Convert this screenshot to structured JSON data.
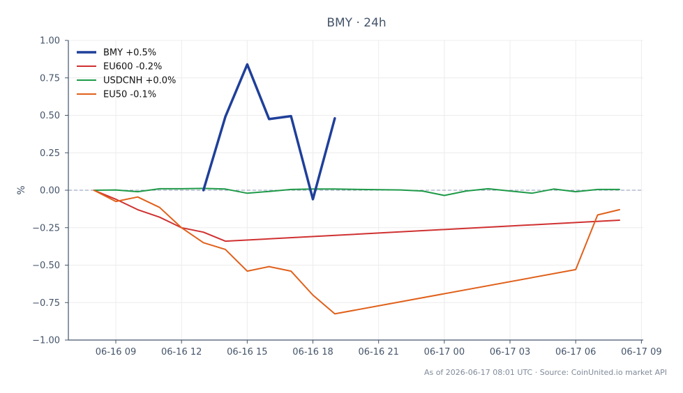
{
  "chart_data": {
    "type": "line",
    "title": "BMY · 24h",
    "xlabel": "",
    "ylabel": "%",
    "ylim": [
      -1.0,
      1.0
    ],
    "yticks": [
      -1.0,
      -0.75,
      -0.5,
      -0.25,
      0.0,
      0.25,
      0.5,
      0.75,
      1.0
    ],
    "ytick_labels": [
      "−1.00",
      "−0.75",
      "−0.50",
      "−0.25",
      "0.00",
      "0.25",
      "0.50",
      "0.75",
      "1.00"
    ],
    "xlim": [
      "2026-06-16 06:50",
      "2026-06-17 09:05"
    ],
    "xticks": [
      "2026-06-16 09:00",
      "2026-06-16 12:00",
      "2026-06-16 15:00",
      "2026-06-16 18:00",
      "2026-06-16 21:00",
      "2026-06-17 00:00",
      "2026-06-17 03:00",
      "2026-06-17 06:00",
      "2026-06-17 09:00"
    ],
    "xtick_labels": [
      "06-16 09",
      "06-16 12",
      "06-16 15",
      "06-16 18",
      "06-16 21",
      "06-17 00",
      "06-17 03",
      "06-17 06",
      "06-17 09"
    ],
    "grid": true,
    "reference_line": 0.0,
    "legend_position": "top-left",
    "series": [
      {
        "name": "BMY +0.5%",
        "color": "#1f3f9a",
        "width": 3.5,
        "x": [
          "2026-06-16 13:00",
          "2026-06-16 14:00",
          "2026-06-16 15:00",
          "2026-06-16 16:00",
          "2026-06-16 17:00",
          "2026-06-16 18:00",
          "2026-06-16 19:00"
        ],
        "y": [
          0.0,
          0.49,
          0.84,
          0.475,
          0.495,
          -0.06,
          0.48
        ]
      },
      {
        "name": "EU600 -0.2%",
        "color": "#d03030",
        "width": 2,
        "x": [
          "2026-06-16 08:00",
          "2026-06-16 09:00",
          "2026-06-16 10:00",
          "2026-06-16 11:00",
          "2026-06-16 12:00",
          "2026-06-16 13:00",
          "2026-06-16 14:00",
          "2026-06-17 08:00"
        ],
        "y": [
          0.0,
          -0.06,
          -0.13,
          -0.18,
          -0.25,
          -0.28,
          -0.34,
          -0.2
        ]
      },
      {
        "name": "USDCNH +0.0%",
        "color": "#1e9a48",
        "width": 2,
        "x": [
          "2026-06-16 08:00",
          "2026-06-16 09:00",
          "2026-06-16 10:00",
          "2026-06-16 11:00",
          "2026-06-16 12:00",
          "2026-06-16 13:00",
          "2026-06-16 14:00",
          "2026-06-16 15:00",
          "2026-06-16 16:00",
          "2026-06-16 17:00",
          "2026-06-16 18:00",
          "2026-06-16 19:00",
          "2026-06-16 22:00",
          "2026-06-16 23:00",
          "2026-06-17 00:00",
          "2026-06-17 01:00",
          "2026-06-17 02:00",
          "2026-06-17 03:00",
          "2026-06-17 04:00",
          "2026-06-17 05:00",
          "2026-06-17 06:00",
          "2026-06-17 07:00",
          "2026-06-17 08:00"
        ],
        "y": [
          0.0,
          0.002,
          -0.01,
          0.01,
          0.01,
          0.012,
          0.008,
          -0.02,
          -0.008,
          0.005,
          0.008,
          0.008,
          0.002,
          -0.005,
          -0.035,
          -0.005,
          0.01,
          -0.005,
          -0.02,
          0.008,
          -0.01,
          0.005,
          0.005
        ]
      },
      {
        "name": "EU50 -0.1%",
        "color": "#e0601a",
        "width": 2,
        "x": [
          "2026-06-16 08:00",
          "2026-06-16 09:00",
          "2026-06-16 10:00",
          "2026-06-16 11:00",
          "2026-06-16 12:00",
          "2026-06-16 13:00",
          "2026-06-16 14:00",
          "2026-06-16 15:00",
          "2026-06-16 16:00",
          "2026-06-16 17:00",
          "2026-06-16 18:00",
          "2026-06-16 19:00",
          "2026-06-17 06:00",
          "2026-06-17 07:00",
          "2026-06-17 08:00"
        ],
        "y": [
          0.0,
          -0.075,
          -0.045,
          -0.115,
          -0.25,
          -0.35,
          -0.395,
          -0.54,
          -0.51,
          -0.54,
          -0.7,
          -0.825,
          -0.53,
          -0.165,
          -0.13
        ]
      }
    ],
    "footer": "As of 2026-06-17 08:01 UTC · Source: CoinUnited.io market API"
  }
}
